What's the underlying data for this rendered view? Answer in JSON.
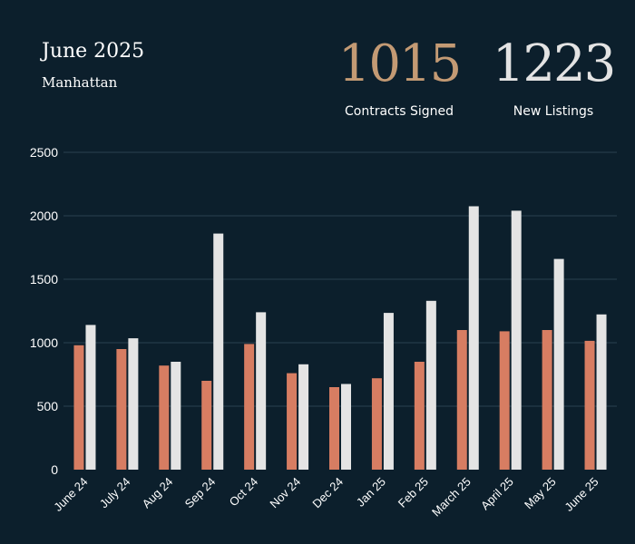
{
  "header": {
    "title": "June 2025",
    "subtitle": "Manhattan"
  },
  "kpis": [
    {
      "value": "1015",
      "label": "Contracts Signed"
    },
    {
      "value": "1223",
      "label": "New Listings"
    }
  ],
  "colors": {
    "background": "#0c1f2c",
    "contracts": "#d77d62",
    "listings": "#e4e4e4",
    "gridline": "#2a4250",
    "text": "#ffffff"
  },
  "chart_data": {
    "type": "bar",
    "categories": [
      "June 24",
      "July 24",
      "Aug 24",
      "Sep 24",
      "Oct 24",
      "Nov 24",
      "Dec 24",
      "Jan 25",
      "Feb 25",
      "March 25",
      "April 25",
      "May 25",
      "June 25"
    ],
    "series": [
      {
        "name": "Contracts Signed",
        "values": [
          980,
          950,
          820,
          700,
          990,
          760,
          650,
          720,
          850,
          1100,
          1090,
          1100,
          1015
        ]
      },
      {
        "name": "New Listings",
        "values": [
          1140,
          1035,
          850,
          1860,
          1240,
          830,
          675,
          1235,
          1330,
          2075,
          2040,
          1660,
          1223
        ]
      }
    ],
    "yticks": [
      0,
      500,
      1000,
      1500,
      2000,
      2500
    ],
    "ylim": [
      0,
      2500
    ],
    "grid": true
  }
}
